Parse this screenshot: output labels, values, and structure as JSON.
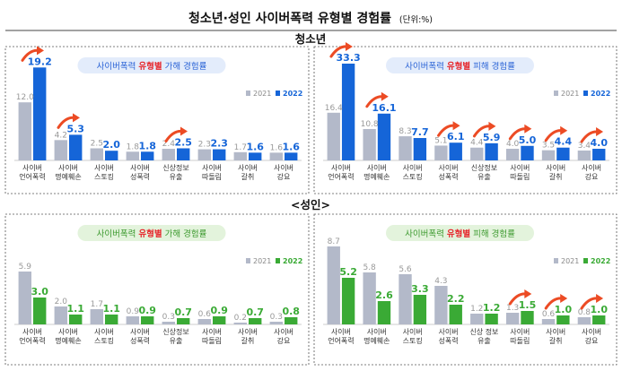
{
  "title": "청소년·성인 사이버폭력 유형별 경험률",
  "unit": "(단위:%)",
  "sections": {
    "youth": "청소년",
    "adult": "<성인>"
  },
  "chart_data": [
    {
      "type": "bar",
      "group": "youth",
      "subtitle_pre": "사이버폭력 ",
      "subtitle_hl": "유형별",
      "subtitle_post": " 가해 경험률",
      "categories": [
        [
          "사이버",
          "언어폭력"
        ],
        [
          "사이버",
          "명예훼손"
        ],
        [
          "사이버",
          "스토킹"
        ],
        [
          "사이버",
          "성폭력"
        ],
        [
          "신상정보",
          "유출"
        ],
        [
          "사이버",
          "따돌림"
        ],
        [
          "사이버",
          "갈취"
        ],
        [
          "사이버",
          "강요"
        ]
      ],
      "series": [
        {
          "name": "2021",
          "values": [
            12.0,
            4.2,
            2.5,
            1.8,
            2.4,
            2.3,
            1.7,
            1.6
          ]
        },
        {
          "name": "2022",
          "values": [
            19.2,
            5.3,
            2.0,
            1.8,
            2.5,
            2.3,
            1.6,
            1.6
          ]
        }
      ],
      "arrows": [
        0,
        1,
        4
      ],
      "legend": "top-right",
      "colors": {
        "2021": "#b3b9c9",
        "2022": "#1565d8",
        "accent": "#ec4b24",
        "pill_bg": "#e3ecfb",
        "pill_text": "#2a63d6"
      }
    },
    {
      "type": "bar",
      "group": "youth",
      "subtitle_pre": "사이버폭력 ",
      "subtitle_hl": "유형별",
      "subtitle_post": " 피해 경험률",
      "categories": [
        [
          "사이버",
          "언어폭력"
        ],
        [
          "사이버",
          "명예훼손"
        ],
        [
          "사이버",
          "스토킹"
        ],
        [
          "사이버",
          "성폭력"
        ],
        [
          "신상정보",
          "유출"
        ],
        [
          "사이버",
          "따돌림"
        ],
        [
          "사이버",
          "갈취"
        ],
        [
          "사이버",
          "강요"
        ]
      ],
      "series": [
        {
          "name": "2021",
          "values": [
            16.4,
            10.8,
            8.3,
            5.1,
            4.4,
            4.0,
            3.5,
            3.4
          ]
        },
        {
          "name": "2022",
          "values": [
            33.3,
            16.1,
            7.7,
            6.1,
            5.9,
            5.0,
            4.4,
            4.0
          ]
        }
      ],
      "arrows": [
        0,
        1,
        3,
        4,
        5,
        6,
        7
      ],
      "legend": "top-right",
      "colors": {
        "2021": "#b3b9c9",
        "2022": "#1565d8",
        "accent": "#ec4b24",
        "pill_bg": "#e3ecfb",
        "pill_text": "#2a63d6"
      }
    },
    {
      "type": "bar",
      "group": "adult",
      "subtitle_pre": "사이버폭력 ",
      "subtitle_hl": "유형별",
      "subtitle_post": " 가해 경험률",
      "categories": [
        [
          "사이버",
          "언어폭력"
        ],
        [
          "사이버",
          "명예훼손"
        ],
        [
          "사이버",
          "스토킹"
        ],
        [
          "사이버",
          "성폭력"
        ],
        [
          "신상정보",
          "유출"
        ],
        [
          "사이버",
          "따돌림"
        ],
        [
          "사이버",
          "갈취"
        ],
        [
          "사이버",
          "강요"
        ]
      ],
      "series": [
        {
          "name": "2021",
          "values": [
            5.9,
            2.0,
            1.7,
            0.9,
            0.3,
            0.6,
            0.2,
            0.3
          ]
        },
        {
          "name": "2022",
          "values": [
            3.0,
            1.1,
            1.1,
            0.9,
            0.7,
            0.9,
            0.7,
            0.8
          ]
        }
      ],
      "arrows": [],
      "legend": "top-right",
      "colors": {
        "2021": "#b3b9c9",
        "2022": "#3aaa35",
        "accent": "#ec4b24",
        "pill_bg": "#e3f3dc",
        "pill_text": "#3c9a2e"
      }
    },
    {
      "type": "bar",
      "group": "adult",
      "subtitle_pre": "사이버폭력 ",
      "subtitle_hl": "유형별",
      "subtitle_post": " 피해 경험률",
      "categories": [
        [
          "사이버",
          "언어폭력"
        ],
        [
          "사이버",
          "명예훼손"
        ],
        [
          "사이버",
          "스토킹"
        ],
        [
          "사이버",
          "성폭력"
        ],
        [
          "신상 정보",
          "유출"
        ],
        [
          "사이버",
          "따돌림"
        ],
        [
          "사이버",
          "갈취"
        ],
        [
          "사이버",
          "강요"
        ]
      ],
      "series": [
        {
          "name": "2021",
          "values": [
            8.7,
            5.8,
            5.6,
            4.3,
            1.2,
            1.3,
            0.6,
            0.8
          ]
        },
        {
          "name": "2022",
          "values": [
            5.2,
            2.6,
            3.3,
            2.2,
            1.2,
            1.5,
            1.0,
            1.0
          ]
        }
      ],
      "arrows": [
        5,
        6,
        7
      ],
      "legend": "top-right",
      "colors": {
        "2021": "#b3b9c9",
        "2022": "#3aaa35",
        "accent": "#ec4b24",
        "pill_bg": "#e3f3dc",
        "pill_text": "#3c9a2e"
      }
    }
  ]
}
